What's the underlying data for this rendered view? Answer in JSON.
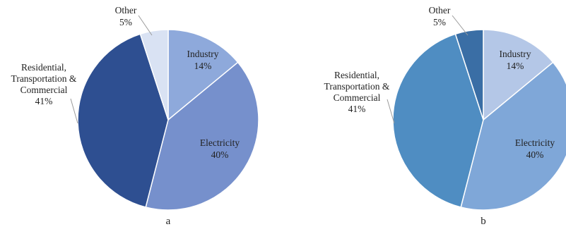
{
  "chart_data": [
    {
      "type": "pie",
      "panel_label": "a",
      "slices": [
        {
          "label_lines": [
            "Industry",
            "14%"
          ],
          "value": 14,
          "color": "#8ea9db"
        },
        {
          "label_lines": [
            "Electricity",
            "40%"
          ],
          "value": 40,
          "color": "#7690cc"
        },
        {
          "label_lines": [
            "Residential,",
            "Transportation &",
            "Commercial",
            "41%"
          ],
          "value": 41,
          "color": "#2e4f91"
        },
        {
          "label_lines": [
            "Other",
            "5%"
          ],
          "value": 5,
          "color": "#d9e2f3"
        }
      ],
      "start": "12 o'clock, clockwise",
      "legend": "none"
    },
    {
      "type": "pie",
      "panel_label": "b",
      "slices": [
        {
          "label_lines": [
            "Industry",
            "14%"
          ],
          "value": 14,
          "color": "#b4c7e7"
        },
        {
          "label_lines": [
            "Electricity",
            "40%"
          ],
          "value": 40,
          "color": "#7fa7d8"
        },
        {
          "label_lines": [
            "Residential,",
            "Transportation &",
            "Commercial",
            "41%"
          ],
          "value": 41,
          "color": "#4f8dc2"
        },
        {
          "label_lines": [
            "Other",
            "5%"
          ],
          "value": 5,
          "color": "#3a6ea5"
        }
      ],
      "start": "12 o'clock, clockwise",
      "legend": "none"
    }
  ]
}
